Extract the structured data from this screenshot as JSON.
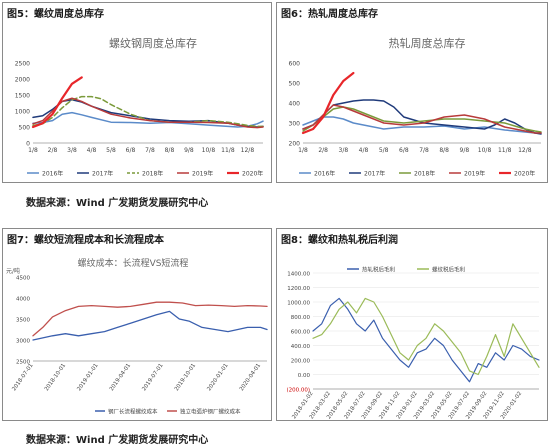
{
  "source_text": "数据来源：Wind 广发期货发展研究中心",
  "chart_data": [
    {
      "id": "fig5",
      "type": "line",
      "panel_title": "图5：螺纹周度总库存",
      "title": "螺纹钢周度总库存",
      "xlabel": "",
      "ylabel": "",
      "ylim": [
        0,
        2500
      ],
      "yticks": [
        0,
        500,
        1000,
        1500,
        2000,
        2500
      ],
      "x_tick_labels": [
        "1/8",
        "2/8",
        "3/8",
        "4/8",
        "5/8",
        "6/8",
        "7/8",
        "8/8",
        "9/8",
        "10/8",
        "11/8",
        "12/8"
      ],
      "xlim": [
        0,
        11.8
      ],
      "legend_position": "bottom",
      "series": [
        {
          "name": "2016年",
          "color": "#5b8bc9",
          "dash": "",
          "width": 1.5,
          "x": [
            0,
            0.5,
            1,
            1.5,
            2,
            2.5,
            3,
            4,
            5,
            6,
            7,
            8,
            9,
            10,
            10.5,
            11,
            11.5,
            11.8
          ],
          "y": [
            620,
            640,
            700,
            900,
            950,
            880,
            800,
            650,
            640,
            620,
            640,
            600,
            560,
            520,
            500,
            520,
            600,
            680
          ]
        },
        {
          "name": "2017年",
          "color": "#1f3a7a",
          "dash": "",
          "width": 1.5,
          "x": [
            0,
            0.5,
            1,
            1.5,
            2,
            2.5,
            3,
            4,
            5,
            6,
            7,
            8,
            9,
            10,
            10.5,
            11,
            11.5,
            11.8
          ],
          "y": [
            800,
            850,
            1050,
            1300,
            1350,
            1280,
            1150,
            950,
            850,
            750,
            700,
            680,
            700,
            620,
            560,
            520,
            500,
            520
          ]
        },
        {
          "name": "2018年",
          "color": "#7a9a3a",
          "dash": "5,3",
          "width": 1.5,
          "x": [
            0,
            0.5,
            1,
            1.5,
            2,
            2.5,
            3,
            3.5,
            4,
            5,
            6,
            7,
            8,
            9,
            10,
            10.5,
            11,
            11.5,
            11.8
          ],
          "y": [
            550,
            600,
            800,
            1100,
            1350,
            1450,
            1450,
            1380,
            1200,
            900,
            700,
            650,
            650,
            700,
            650,
            600,
            550,
            520,
            520
          ]
        },
        {
          "name": "2019年",
          "color": "#b83a3a",
          "dash": "",
          "width": 1.5,
          "x": [
            0,
            0.5,
            1,
            1.5,
            2,
            2.5,
            3,
            4,
            5,
            6,
            7,
            8,
            9,
            10,
            10.5,
            11,
            11.5,
            11.8
          ],
          "y": [
            600,
            700,
            1000,
            1300,
            1400,
            1300,
            1150,
            900,
            780,
            700,
            650,
            650,
            640,
            620,
            560,
            500,
            480,
            500
          ]
        },
        {
          "name": "2020年",
          "color": "#e8262a",
          "dash": "",
          "width": 2.2,
          "x": [
            0,
            0.5,
            1,
            1.5,
            2,
            2.5
          ],
          "y": [
            500,
            620,
            900,
            1400,
            1850,
            2050
          ]
        }
      ]
    },
    {
      "id": "fig6",
      "type": "line",
      "panel_title": "图6：热轧周度总库存",
      "title": "热轧周度总库存",
      "xlabel": "",
      "ylabel": "",
      "ylim": [
        200,
        600
      ],
      "yticks": [
        200,
        300,
        400,
        500,
        600
      ],
      "x_tick_labels": [
        "1/8",
        "2/8",
        "3/8",
        "4/8",
        "5/8",
        "6/8",
        "7/8",
        "8/8",
        "9/8",
        "10/8",
        "11/8",
        "12/8"
      ],
      "xlim": [
        0,
        11.8
      ],
      "legend_position": "bottom",
      "series": [
        {
          "name": "2016年",
          "color": "#5b8bc9",
          "dash": "",
          "width": 1.5,
          "x": [
            0,
            0.5,
            1,
            1.5,
            2,
            2.5,
            3,
            4,
            5,
            6,
            7,
            8,
            9,
            10,
            10.5,
            11,
            11.5,
            11.8
          ],
          "y": [
            290,
            310,
            330,
            330,
            320,
            300,
            290,
            270,
            280,
            280,
            285,
            270,
            280,
            265,
            260,
            255,
            250,
            250
          ]
        },
        {
          "name": "2017年",
          "color": "#1f3a7a",
          "dash": "",
          "width": 1.5,
          "x": [
            0,
            0.5,
            1,
            1.5,
            2,
            2.5,
            3,
            3.5,
            4,
            4.5,
            5,
            6,
            7,
            8,
            9,
            9.5,
            10,
            10.5,
            11,
            11.5,
            11.8
          ],
          "y": [
            270,
            290,
            340,
            390,
            400,
            410,
            415,
            415,
            410,
            380,
            330,
            300,
            290,
            280,
            270,
            290,
            320,
            300,
            270,
            250,
            245
          ]
        },
        {
          "name": "2018年",
          "color": "#7a9a3a",
          "dash": "",
          "width": 1.5,
          "x": [
            0,
            0.5,
            1,
            1.5,
            2,
            2.5,
            3,
            4,
            5,
            6,
            7,
            8,
            9,
            10,
            10.5,
            11,
            11.5,
            11.8
          ],
          "y": [
            260,
            290,
            330,
            370,
            380,
            370,
            350,
            310,
            300,
            310,
            320,
            320,
            310,
            300,
            285,
            270,
            260,
            255
          ]
        },
        {
          "name": "2019年",
          "color": "#b83a3a",
          "dash": "",
          "width": 1.5,
          "x": [
            0,
            0.5,
            1,
            1.5,
            2,
            2.5,
            3,
            4,
            5,
            6,
            7,
            8,
            9,
            10,
            10.5,
            11,
            11.5,
            11.8
          ],
          "y": [
            270,
            290,
            340,
            390,
            380,
            360,
            340,
            300,
            290,
            300,
            330,
            340,
            320,
            280,
            270,
            260,
            250,
            250
          ]
        },
        {
          "name": "2020年",
          "color": "#e8262a",
          "dash": "",
          "width": 2.2,
          "x": [
            0,
            0.5,
            1,
            1.5,
            2,
            2.5
          ],
          "y": [
            250,
            270,
            330,
            440,
            510,
            550
          ]
        }
      ]
    },
    {
      "id": "fig7",
      "type": "line",
      "panel_title": "图7：螺纹短流程成本和长流程成本",
      "title": "螺纹成本：长流程VS短流程",
      "y_unit": "元/吨",
      "xlabel": "",
      "ylabel": "",
      "ylim": [
        2500,
        4500
      ],
      "yticks": [
        2500,
        3000,
        3500,
        4000,
        4500
      ],
      "x_tick_labels": [
        "2018-07-01",
        "2018-10-01",
        "2019-01-01",
        "2019-04-01",
        "2019-07-01",
        "2019-10-01",
        "2020-01-01",
        "2020-04-01"
      ],
      "xlim": [
        0,
        7.2
      ],
      "legend_position": "bottom",
      "series": [
        {
          "name": "钢厂长流程螺纹成本",
          "color": "#3a5fae",
          "dash": "",
          "width": 1.3,
          "x": [
            0,
            0.3,
            0.6,
            1,
            1.4,
            1.8,
            2.2,
            2.6,
            3,
            3.4,
            3.8,
            4.2,
            4.5,
            4.8,
            5.2,
            5.6,
            6,
            6.3,
            6.6,
            7,
            7.2
          ],
          "y": [
            3000,
            3050,
            3100,
            3150,
            3100,
            3150,
            3200,
            3300,
            3400,
            3500,
            3600,
            3680,
            3500,
            3450,
            3300,
            3250,
            3200,
            3250,
            3300,
            3300,
            3250
          ]
        },
        {
          "name": "独立电弧炉钢厂螺纹成本",
          "color": "#c0504d",
          "dash": "",
          "width": 1.3,
          "x": [
            0,
            0.3,
            0.6,
            1,
            1.4,
            1.8,
            2.2,
            2.6,
            3,
            3.4,
            3.8,
            4.2,
            4.6,
            5,
            5.4,
            5.8,
            6.2,
            6.6,
            7,
            7.2
          ],
          "y": [
            3100,
            3300,
            3550,
            3700,
            3800,
            3820,
            3800,
            3780,
            3800,
            3850,
            3900,
            3900,
            3880,
            3820,
            3830,
            3820,
            3800,
            3820,
            3810,
            3800
          ]
        }
      ]
    },
    {
      "id": "fig8",
      "type": "line",
      "panel_title": "图8：螺纹和热轧税后利润",
      "title": "",
      "xlabel": "",
      "ylabel": "",
      "ylim": [
        -200,
        1400
      ],
      "yticks": [
        -200,
        0,
        200,
        400,
        600,
        800,
        1000,
        1200,
        1400
      ],
      "ytick_labels": [
        "(200.00)",
        "0.00",
        "200.00",
        "400.00",
        "600.00",
        "800.00",
        "1000.00",
        "1200.00",
        "1400.00"
      ],
      "x_tick_labels": [
        "2018-01-02",
        "2018-03-02",
        "2018-05-02",
        "2018-07-02",
        "2018-09-02",
        "2018-11-02",
        "2019-01-02",
        "2019-03-02",
        "2019-05-02",
        "2019-07-02",
        "2019-09-02",
        "2019-11-02",
        "2020-01-02"
      ],
      "xlim": [
        0,
        13
      ],
      "legend_position": "top",
      "series": [
        {
          "name": "热轧税后毛利",
          "color": "#3a5fae",
          "dash": "",
          "width": 1.2,
          "x": [
            0,
            0.5,
            1,
            1.5,
            2,
            2.5,
            3,
            3.5,
            4,
            4.5,
            5,
            5.5,
            6,
            6.5,
            7,
            7.5,
            8,
            8.5,
            9,
            9.5,
            10,
            10.5,
            11,
            11.5,
            12,
            12.5,
            13
          ],
          "y": [
            600,
            700,
            950,
            1050,
            900,
            700,
            600,
            750,
            500,
            350,
            200,
            100,
            300,
            350,
            500,
            400,
            200,
            50,
            -100,
            150,
            100,
            300,
            200,
            400,
            350,
            250,
            200
          ]
        },
        {
          "name": "螺纹税后毛利",
          "color": "#9bbb59",
          "dash": "",
          "width": 1.2,
          "x": [
            0,
            0.5,
            1,
            1.5,
            2,
            2.5,
            3,
            3.5,
            4,
            4.5,
            5,
            5.5,
            6,
            6.5,
            7,
            7.5,
            8,
            8.5,
            9,
            9.5,
            10,
            10.5,
            11,
            11.5,
            12,
            12.5,
            13
          ],
          "y": [
            500,
            550,
            700,
            900,
            1000,
            850,
            1050,
            1000,
            800,
            550,
            300,
            200,
            400,
            500,
            700,
            600,
            450,
            300,
            50,
            0,
            250,
            550,
            250,
            700,
            500,
            300,
            100
          ]
        }
      ]
    }
  ]
}
